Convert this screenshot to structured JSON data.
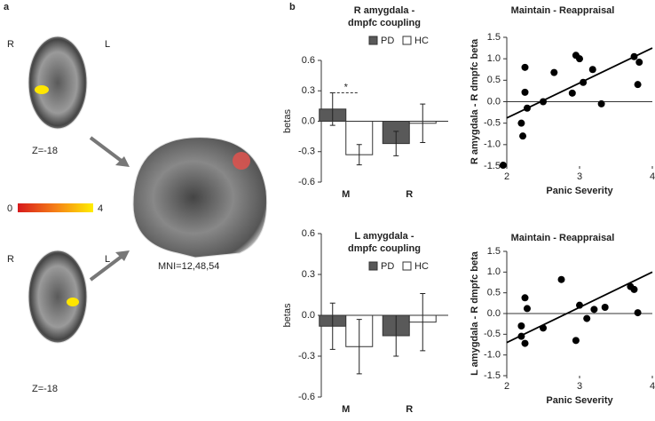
{
  "panel_a": {
    "label": "a",
    "top_slice": {
      "left": "R",
      "right": "L",
      "z": "Z=-18"
    },
    "bottom_slice": {
      "left": "R",
      "right": "L",
      "z": "Z=-18"
    },
    "colorbar": {
      "min": "0",
      "max": "4"
    },
    "sagittal": "MNI=12,48,54"
  },
  "panel_b": {
    "label": "b"
  },
  "chart_data": [
    {
      "type": "bar",
      "title": [
        "R amygdala -",
        "dmpfc coupling"
      ],
      "y_label": "betas",
      "categories": [
        "M",
        "R"
      ],
      "series": [
        {
          "name": "PD",
          "color": "#595959",
          "values": [
            0.12,
            -0.22
          ],
          "errors": [
            0.16,
            0.12
          ]
        },
        {
          "name": "HC",
          "color": "#ffffff",
          "values": [
            -0.33,
            -0.02
          ],
          "errors": [
            0.1,
            0.19
          ]
        }
      ],
      "significance": "*",
      "ylim": [
        -0.6,
        0.6
      ],
      "yticks": [
        -0.6,
        -0.3,
        {
          "value": 0,
          "label": "0.0"
        },
        0.3,
        0.6
      ]
    },
    {
      "type": "scatter",
      "title": "Maintain - Reappraisal",
      "x_label": "Panic Severity",
      "y_label": "R amygdala - R dmpfc beta",
      "x": [
        1.95,
        2.2,
        2.22,
        2.25,
        2.25,
        2.28,
        2.5,
        2.65,
        2.9,
        2.95,
        3.0,
        3.05,
        3.18,
        3.3,
        3.75,
        3.8,
        3.82
      ],
      "values": [
        -1.48,
        -0.5,
        -0.8,
        0.22,
        0.8,
        -0.15,
        0,
        0.68,
        0.2,
        1.08,
        1.0,
        0.45,
        0.75,
        -0.05,
        1.05,
        0.4,
        0.92
      ],
      "color": "#000000",
      "fit_x": [
        2,
        4
      ],
      "fit_y": [
        -0.38,
        1.25
      ],
      "xlim": [
        2,
        4
      ],
      "xticks": [
        2,
        3,
        4
      ],
      "ylim": [
        -1.5,
        1.5
      ],
      "yticks": [
        -1.5,
        {
          "value": -1,
          "label": "-1.0"
        },
        -0.5,
        {
          "value": 0,
          "label": "0.0"
        },
        0.5,
        {
          "value": 1,
          "label": "1.0"
        },
        1.5
      ]
    },
    {
      "type": "bar",
      "title": [
        "L amygdala -",
        "dmpfc coupling"
      ],
      "y_label": "betas",
      "categories": [
        "M",
        "R"
      ],
      "series": [
        {
          "name": "PD",
          "color": "#595959",
          "values": [
            -0.08,
            -0.15
          ],
          "errors": [
            0.17,
            0.15
          ]
        },
        {
          "name": "HC",
          "color": "#ffffff",
          "values": [
            -0.23,
            -0.05
          ],
          "errors": [
            0.2,
            0.21
          ]
        }
      ],
      "ylim": [
        -0.6,
        0.6
      ],
      "yticks": [
        -0.6,
        -0.3,
        {
          "value": 0,
          "label": "0.0"
        },
        0.3,
        0.6
      ]
    },
    {
      "type": "scatter",
      "title": "Maintain - Reappraisal",
      "x_label": "Panic Severity",
      "y_label": "L amygdala - R dmpfc beta",
      "x": [
        2.2,
        2.2,
        2.25,
        2.25,
        2.28,
        2.5,
        2.75,
        2.95,
        3.0,
        3.1,
        3.2,
        3.35,
        3.7,
        3.75,
        3.8
      ],
      "values": [
        -0.3,
        -0.55,
        -0.72,
        0.38,
        0.12,
        -0.35,
        0.82,
        -0.65,
        0.2,
        -0.12,
        0.1,
        0.15,
        0.65,
        0.58,
        0.02
      ],
      "color": "#000000",
      "fit_x": [
        2,
        4
      ],
      "fit_y": [
        -0.7,
        1.0
      ],
      "xlim": [
        2,
        4
      ],
      "xticks": [
        2,
        3,
        4
      ],
      "ylim": [
        -1.5,
        1.5
      ],
      "yticks": [
        -1.5,
        {
          "value": -1,
          "label": "-1.0"
        },
        -0.5,
        {
          "value": 0,
          "label": "0.0"
        },
        0.5,
        {
          "value": 1,
          "label": "1.0"
        },
        1.5
      ]
    }
  ]
}
